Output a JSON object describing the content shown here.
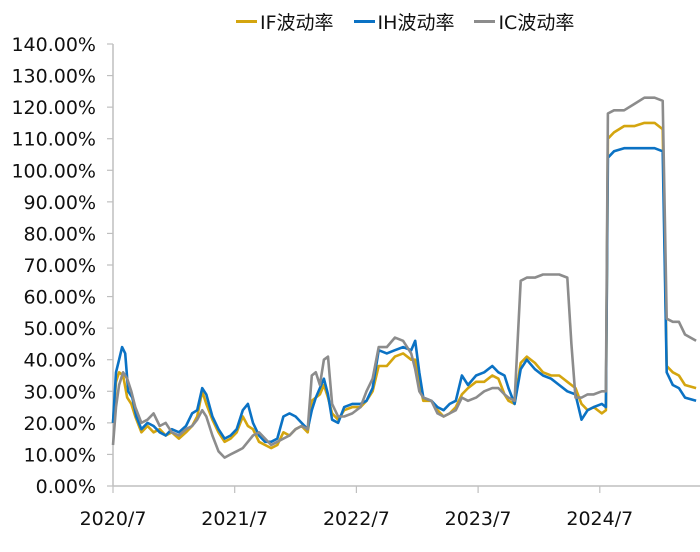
{
  "chart_data": {
    "type": "line",
    "title": "",
    "xlabel": "",
    "ylabel": "",
    "ylim": [
      0,
      140
    ],
    "y_ticks": [
      "0.00%",
      "10.00%",
      "20.00%",
      "30.00%",
      "40.00%",
      "50.00%",
      "60.00%",
      "70.00%",
      "80.00%",
      "90.00%",
      "100.00%",
      "110.00%",
      "120.00%",
      "130.00%",
      "140.00%"
    ],
    "x_ticks": [
      "2020/7",
      "2021/7",
      "2022/7",
      "2023/7",
      "2024/7"
    ],
    "x_unit": "months since 2020/7",
    "x_range": [
      0,
      57.5
    ],
    "grid": false,
    "legend_position": "top",
    "series": [
      {
        "name": "IF波动率",
        "color": "#D4A50F",
        "points": [
          [
            0,
            20
          ],
          [
            0.3,
            33
          ],
          [
            0.6,
            36
          ],
          [
            1,
            35
          ],
          [
            1.4,
            28
          ],
          [
            1.8,
            26
          ],
          [
            2.2,
            22
          ],
          [
            2.8,
            17
          ],
          [
            3.4,
            19
          ],
          [
            4,
            17
          ],
          [
            4.6,
            18
          ],
          [
            5.2,
            16
          ],
          [
            5.8,
            17
          ],
          [
            6.5,
            15
          ],
          [
            7.2,
            17
          ],
          [
            7.8,
            19
          ],
          [
            8.3,
            22
          ],
          [
            8.8,
            30
          ],
          [
            9.2,
            26
          ],
          [
            9.8,
            21
          ],
          [
            10.4,
            17
          ],
          [
            11,
            14
          ],
          [
            11.6,
            15
          ],
          [
            12.2,
            17
          ],
          [
            12.8,
            22
          ],
          [
            13.3,
            19
          ],
          [
            13.8,
            18
          ],
          [
            14.4,
            14
          ],
          [
            15,
            13
          ],
          [
            15.6,
            12
          ],
          [
            16.2,
            13
          ],
          [
            16.8,
            17
          ],
          [
            17.4,
            16
          ],
          [
            18,
            18
          ],
          [
            18.6,
            19
          ],
          [
            19.2,
            17
          ],
          [
            19.6,
            27
          ],
          [
            20,
            28
          ],
          [
            20.4,
            29
          ],
          [
            20.8,
            32
          ],
          [
            21.2,
            28
          ],
          [
            21.6,
            23
          ],
          [
            22.2,
            21
          ],
          [
            22.8,
            24
          ],
          [
            23.6,
            25
          ],
          [
            24.4,
            25
          ],
          [
            25,
            27
          ],
          [
            25.6,
            30
          ],
          [
            26.2,
            38
          ],
          [
            27,
            38
          ],
          [
            27.8,
            41
          ],
          [
            28.6,
            42
          ],
          [
            29.4,
            40
          ],
          [
            29.8,
            40
          ],
          [
            30.2,
            33
          ],
          [
            30.6,
            27
          ],
          [
            31.4,
            27
          ],
          [
            32,
            24
          ],
          [
            32.6,
            22
          ],
          [
            33.2,
            23
          ],
          [
            33.8,
            25
          ],
          [
            34.4,
            29
          ],
          [
            35,
            31
          ],
          [
            35.8,
            33
          ],
          [
            36.6,
            33
          ],
          [
            37.4,
            35
          ],
          [
            38,
            34
          ],
          [
            38.6,
            29
          ],
          [
            39,
            27
          ],
          [
            39.6,
            26
          ],
          [
            40.2,
            39
          ],
          [
            40.8,
            41
          ],
          [
            41.6,
            39
          ],
          [
            42.4,
            36
          ],
          [
            43.2,
            35
          ],
          [
            44,
            35
          ],
          [
            44.8,
            33
          ],
          [
            45.6,
            31
          ],
          [
            46.2,
            26
          ],
          [
            46.8,
            24
          ],
          [
            47.4,
            25
          ],
          [
            48.2,
            23
          ],
          [
            48.6,
            24
          ],
          [
            48.8,
            110
          ],
          [
            49.4,
            112
          ],
          [
            50.4,
            114
          ],
          [
            51.4,
            114
          ],
          [
            52.4,
            115
          ],
          [
            53.4,
            115
          ],
          [
            54.2,
            113
          ],
          [
            54.6,
            38
          ],
          [
            55.2,
            36
          ],
          [
            55.8,
            35
          ],
          [
            56.4,
            32
          ],
          [
            57.5,
            31
          ]
        ]
      },
      {
        "name": "IH波动率",
        "color": "#0B72C4",
        "points": [
          [
            0,
            20
          ],
          [
            0.3,
            36
          ],
          [
            0.6,
            40
          ],
          [
            0.9,
            44
          ],
          [
            1.2,
            42
          ],
          [
            1.5,
            30
          ],
          [
            1.9,
            28
          ],
          [
            2.3,
            22
          ],
          [
            2.8,
            18
          ],
          [
            3.4,
            20
          ],
          [
            4,
            19
          ],
          [
            4.6,
            17
          ],
          [
            5.2,
            16
          ],
          [
            5.8,
            18
          ],
          [
            6.5,
            17
          ],
          [
            7.2,
            19
          ],
          [
            7.8,
            23
          ],
          [
            8.3,
            24
          ],
          [
            8.8,
            31
          ],
          [
            9.2,
            29
          ],
          [
            9.8,
            22
          ],
          [
            10.4,
            18
          ],
          [
            11,
            15
          ],
          [
            11.6,
            16
          ],
          [
            12.2,
            18
          ],
          [
            12.8,
            24
          ],
          [
            13.3,
            26
          ],
          [
            13.8,
            20
          ],
          [
            14.4,
            16
          ],
          [
            15,
            14
          ],
          [
            15.6,
            14
          ],
          [
            16.2,
            15
          ],
          [
            16.8,
            22
          ],
          [
            17.4,
            23
          ],
          [
            18,
            22
          ],
          [
            18.6,
            20
          ],
          [
            19.2,
            18
          ],
          [
            19.6,
            24
          ],
          [
            20,
            28
          ],
          [
            20.4,
            31
          ],
          [
            20.8,
            34
          ],
          [
            21.2,
            29
          ],
          [
            21.6,
            21
          ],
          [
            22.2,
            20
          ],
          [
            22.8,
            25
          ],
          [
            23.6,
            26
          ],
          [
            24.4,
            26
          ],
          [
            25,
            27
          ],
          [
            25.6,
            31
          ],
          [
            26.2,
            43
          ],
          [
            27,
            42
          ],
          [
            27.8,
            43
          ],
          [
            28.6,
            44
          ],
          [
            29.4,
            43
          ],
          [
            29.8,
            46
          ],
          [
            30.2,
            36
          ],
          [
            30.6,
            28
          ],
          [
            31.4,
            27
          ],
          [
            32,
            25
          ],
          [
            32.6,
            24
          ],
          [
            33.2,
            26
          ],
          [
            33.8,
            27
          ],
          [
            34.4,
            35
          ],
          [
            35,
            32
          ],
          [
            35.8,
            35
          ],
          [
            36.6,
            36
          ],
          [
            37.4,
            38
          ],
          [
            38,
            36
          ],
          [
            38.6,
            35
          ],
          [
            39,
            31
          ],
          [
            39.6,
            26
          ],
          [
            40.2,
            37
          ],
          [
            40.8,
            40
          ],
          [
            41.6,
            37
          ],
          [
            42.4,
            35
          ],
          [
            43.2,
            34
          ],
          [
            44,
            32
          ],
          [
            44.8,
            30
          ],
          [
            45.6,
            29
          ],
          [
            46.2,
            21
          ],
          [
            46.8,
            24
          ],
          [
            47.4,
            25
          ],
          [
            48.2,
            26
          ],
          [
            48.6,
            25
          ],
          [
            48.8,
            104
          ],
          [
            49.4,
            106
          ],
          [
            50.4,
            107
          ],
          [
            51.4,
            107
          ],
          [
            52.4,
            107
          ],
          [
            53.4,
            107
          ],
          [
            54.2,
            106
          ],
          [
            54.6,
            36
          ],
          [
            55.2,
            32
          ],
          [
            55.8,
            31
          ],
          [
            56.4,
            28
          ],
          [
            57.5,
            27
          ]
        ]
      },
      {
        "name": "IC波动率",
        "color": "#8C8C8C",
        "points": [
          [
            0,
            13
          ],
          [
            0.3,
            25
          ],
          [
            0.6,
            32
          ],
          [
            1,
            36
          ],
          [
            1.4,
            34
          ],
          [
            1.8,
            30
          ],
          [
            2.2,
            25
          ],
          [
            2.8,
            20
          ],
          [
            3.4,
            21
          ],
          [
            4,
            23
          ],
          [
            4.6,
            19
          ],
          [
            5.2,
            20
          ],
          [
            5.8,
            17
          ],
          [
            6.5,
            16
          ],
          [
            7.2,
            18
          ],
          [
            7.8,
            19
          ],
          [
            8.3,
            21
          ],
          [
            8.8,
            24
          ],
          [
            9.2,
            22
          ],
          [
            9.8,
            16
          ],
          [
            10.4,
            11
          ],
          [
            11,
            9
          ],
          [
            11.6,
            10
          ],
          [
            12.2,
            11
          ],
          [
            12.8,
            12
          ],
          [
            13.3,
            14
          ],
          [
            13.8,
            16
          ],
          [
            14.4,
            17
          ],
          [
            15,
            15
          ],
          [
            15.6,
            13
          ],
          [
            16.2,
            14
          ],
          [
            16.8,
            15
          ],
          [
            17.4,
            16
          ],
          [
            18,
            18
          ],
          [
            18.6,
            19
          ],
          [
            19.2,
            18
          ],
          [
            19.6,
            35
          ],
          [
            20,
            36
          ],
          [
            20.4,
            32
          ],
          [
            20.8,
            40
          ],
          [
            21.2,
            41
          ],
          [
            21.6,
            26
          ],
          [
            22.2,
            22
          ],
          [
            22.8,
            22
          ],
          [
            23.6,
            23
          ],
          [
            24.4,
            25
          ],
          [
            25,
            30
          ],
          [
            25.6,
            34
          ],
          [
            26.2,
            44
          ],
          [
            27,
            44
          ],
          [
            27.8,
            47
          ],
          [
            28.6,
            46
          ],
          [
            29.4,
            42
          ],
          [
            29.8,
            37
          ],
          [
            30.2,
            30
          ],
          [
            30.6,
            28
          ],
          [
            31.4,
            27
          ],
          [
            32,
            23
          ],
          [
            32.6,
            22
          ],
          [
            33.2,
            23
          ],
          [
            33.8,
            24
          ],
          [
            34.4,
            28
          ],
          [
            35,
            27
          ],
          [
            35.8,
            28
          ],
          [
            36.6,
            30
          ],
          [
            37.4,
            31
          ],
          [
            38,
            31
          ],
          [
            38.6,
            29
          ],
          [
            39,
            28
          ],
          [
            39.6,
            27
          ],
          [
            40.2,
            65
          ],
          [
            40.8,
            66
          ],
          [
            41.6,
            66
          ],
          [
            42.4,
            67
          ],
          [
            43.2,
            67
          ],
          [
            44,
            67
          ],
          [
            44.8,
            66
          ],
          [
            45.2,
            45
          ],
          [
            45.6,
            28
          ],
          [
            46.2,
            28
          ],
          [
            46.8,
            29
          ],
          [
            47.4,
            29
          ],
          [
            48.2,
            30
          ],
          [
            48.6,
            30
          ],
          [
            48.8,
            118
          ],
          [
            49.4,
            119
          ],
          [
            50.4,
            119
          ],
          [
            51.4,
            121
          ],
          [
            52.4,
            123
          ],
          [
            53.4,
            123
          ],
          [
            54.2,
            122
          ],
          [
            54.6,
            53
          ],
          [
            55.2,
            52
          ],
          [
            55.8,
            52
          ],
          [
            56.4,
            48
          ],
          [
            57.5,
            46
          ]
        ]
      }
    ]
  },
  "legend": {
    "items": [
      {
        "label": "IF波动率",
        "color": "#D4A50F"
      },
      {
        "label": "IH波动率",
        "color": "#0B72C4"
      },
      {
        "label": "IC波动率",
        "color": "#8C8C8C"
      }
    ]
  }
}
